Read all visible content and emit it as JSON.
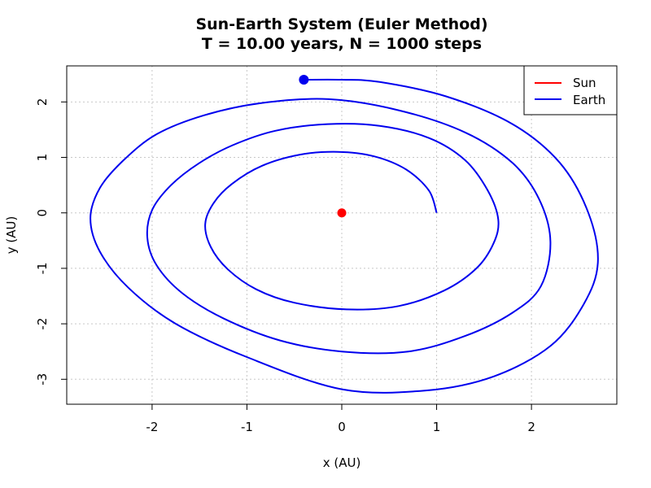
{
  "chart_data": {
    "type": "line",
    "title": "Sun-Earth System (Euler Method)",
    "subtitle": "T = 10.00 years, N = 1000 steps",
    "xlabel": "x (AU)",
    "ylabel": "y (AU)",
    "xlim": [
      -2.9,
      2.9
    ],
    "ylim": [
      -3.45,
      2.65
    ],
    "xticks": [
      -2,
      -1,
      0,
      1,
      2
    ],
    "yticks": [
      -3,
      -2,
      -1,
      0,
      1,
      2
    ],
    "xtick_labels": [
      "-2",
      "-1",
      "0",
      "1",
      "2"
    ],
    "ytick_labels": [
      "-3",
      "-2",
      "-1",
      "0",
      "1",
      "2"
    ],
    "grid": true,
    "legend_position": "top-right",
    "series": [
      {
        "name": "Sun",
        "color": "#ff0000",
        "x": [
          0
        ],
        "y": [
          0
        ]
      },
      {
        "name": "Earth",
        "color": "#0000ee",
        "x": [
          1.0,
          0.92,
          0.68,
          0.34,
          -0.04,
          -0.44,
          -0.84,
          -1.16,
          -1.35,
          -1.44,
          -1.38,
          -1.2,
          -0.9,
          -0.5,
          0.05,
          0.6,
          1.08,
          1.42,
          1.6,
          1.65,
          1.54,
          1.3,
          0.92,
          0.4,
          -0.15,
          -0.7,
          -1.15,
          -1.5,
          -1.8,
          -2.0,
          -2.05,
          -1.95,
          -1.68,
          -1.25,
          -0.65,
          0.0,
          0.7,
          1.3,
          1.8,
          2.1,
          2.2,
          2.08,
          1.8,
          1.3,
          0.6,
          -0.14,
          -0.85,
          -1.45,
          -1.95,
          -2.3,
          -2.55,
          -2.65,
          -2.55,
          -2.25,
          -1.75,
          -1.0,
          0.0,
          0.9,
          1.6,
          2.2,
          2.55,
          2.7,
          2.6,
          2.3,
          1.8,
          1.1,
          0.4,
          0.0,
          -0.4
        ],
        "y": [
          0.0,
          0.4,
          0.78,
          1.02,
          1.1,
          1.05,
          0.85,
          0.52,
          0.18,
          -0.2,
          -0.62,
          -1.02,
          -1.38,
          -1.62,
          -1.74,
          -1.68,
          -1.4,
          -1.0,
          -0.55,
          -0.12,
          0.4,
          0.95,
          1.35,
          1.57,
          1.6,
          1.48,
          1.22,
          0.9,
          0.5,
          0.05,
          -0.45,
          -0.95,
          -1.45,
          -1.9,
          -2.3,
          -2.5,
          -2.5,
          -2.22,
          -1.8,
          -1.32,
          -0.52,
          0.25,
          0.9,
          1.45,
          1.85,
          2.05,
          1.98,
          1.76,
          1.42,
          0.95,
          0.45,
          -0.1,
          -0.7,
          -1.35,
          -2.0,
          -2.6,
          -3.18,
          -3.2,
          -2.95,
          -2.4,
          -1.65,
          -0.9,
          0.0,
          0.9,
          1.6,
          2.1,
          2.36,
          2.4,
          2.4
        ]
      }
    ]
  }
}
